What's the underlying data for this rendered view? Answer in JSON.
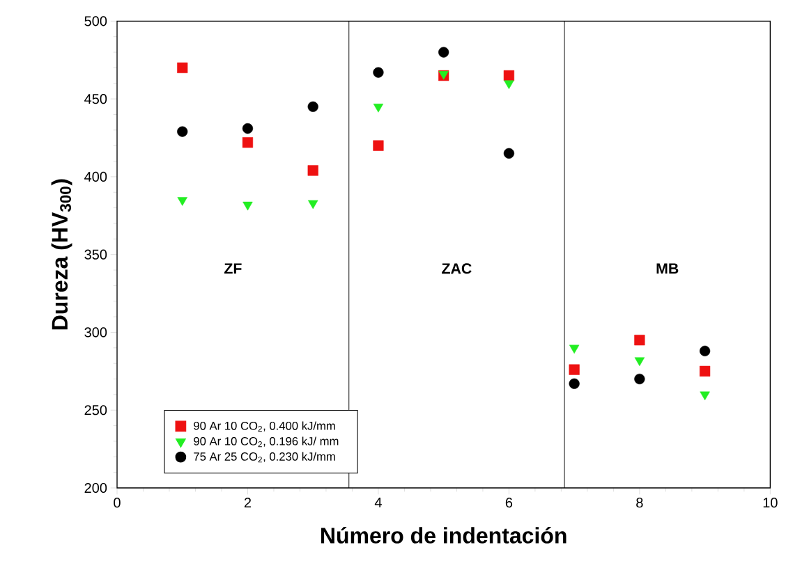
{
  "chart_data": {
    "type": "scatter",
    "xlabel": "Número de indentación",
    "ylabel": "Dureza (HV$_{300}$)",
    "x": [
      1,
      2,
      3,
      4,
      5,
      6,
      7,
      8,
      9
    ],
    "series": [
      {
        "name": "90 Ar 10 CO$_{2}$, 0.400 kJ/mm",
        "color": "#ee1111",
        "marker": "square",
        "values": [
          470,
          422,
          404,
          420,
          465,
          465,
          276,
          295,
          275
        ]
      },
      {
        "name": "90 Ar 10 CO$_{2}$, 0.196 kJ/ mm",
        "color": "#22ee22",
        "marker": "triangle",
        "values": [
          385,
          382,
          383,
          445,
          466,
          460,
          290,
          282,
          260
        ]
      },
      {
        "name": "75 Ar 25 CO$_{2}$, 0.230 kJ/mm",
        "color": "#000000",
        "marker": "circle",
        "values": [
          429,
          431,
          445,
          467,
          480,
          415,
          267,
          270,
          288
        ]
      }
    ],
    "xlim": [
      0,
      10
    ],
    "ylim": [
      200,
      500
    ],
    "xticks": [
      0,
      2,
      4,
      6,
      8,
      10
    ],
    "yticks": [
      200,
      250,
      300,
      350,
      400,
      450,
      500
    ],
    "ref_lines": [
      {
        "axis": "x",
        "value": 3.55,
        "color": "#000000"
      },
      {
        "axis": "x",
        "value": 6.85,
        "color": "#000000"
      }
    ],
    "annotations": [
      "ZF",
      "ZAC",
      "MB"
    ],
    "legend": "bottom left",
    "grid": false
  }
}
